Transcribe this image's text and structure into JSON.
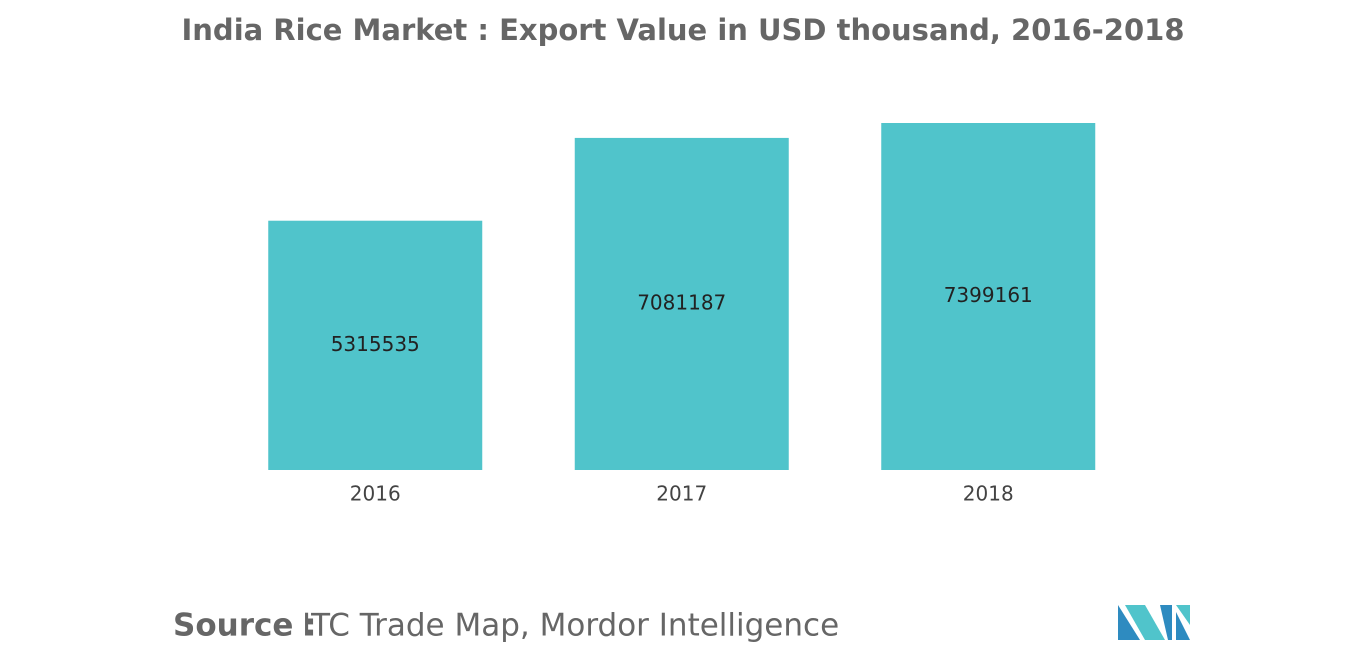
{
  "chart_data": {
    "type": "bar",
    "title": "India Rice Market : Export Value in USD thousand, 2016-2018",
    "categories": [
      "2016",
      "2017",
      "2018"
    ],
    "values": [
      5315535,
      7081187,
      7399161
    ],
    "color": "#50c4cb",
    "source_label": "Source :",
    "source": "ITC Trade Map, Mordor Intelligence"
  }
}
